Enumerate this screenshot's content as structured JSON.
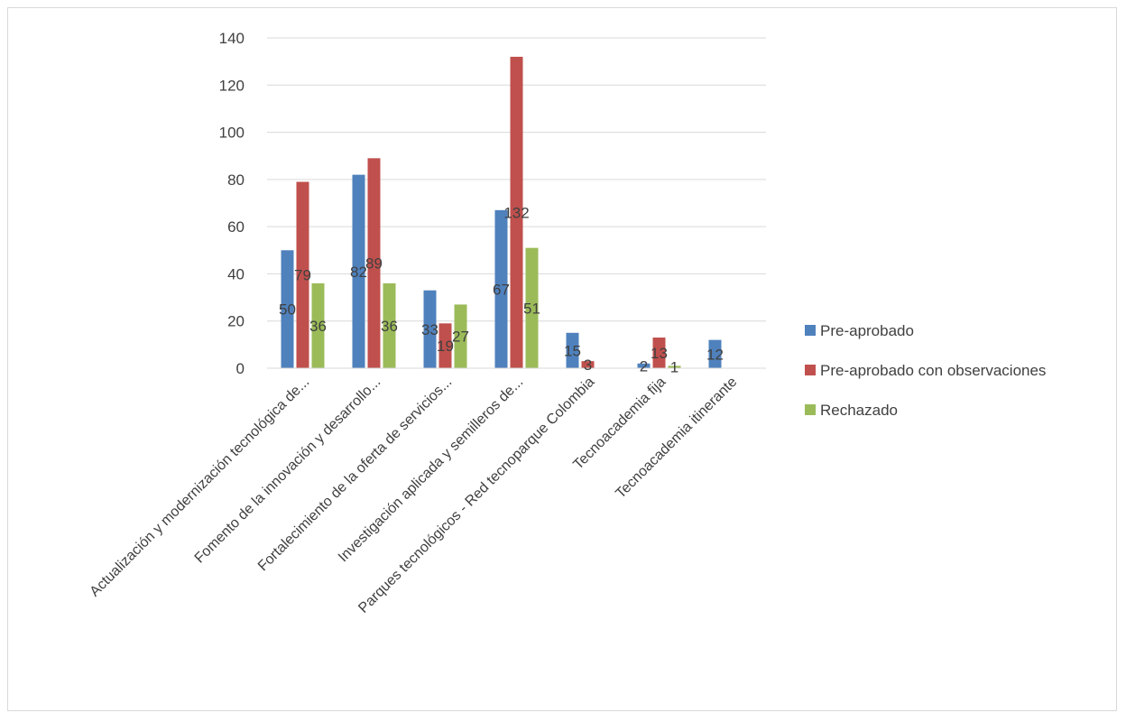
{
  "chart_data": {
    "type": "bar",
    "categories": [
      "Actualización y modernización tecnológica de...",
      "Fomento de la innovación y desarrollo...",
      "Fortalecimiento de la oferta de servicios...",
      "Investigación aplicada y semilleros de...",
      "Parques tecnológicos - Red tecnoparque Colombia",
      "Tecnoacademia fija",
      "Tecnoacademia itinerante"
    ],
    "series": [
      {
        "name": "Pre-aprobado",
        "color": "#4F81BD",
        "values": [
          50,
          82,
          33,
          67,
          15,
          2,
          12
        ]
      },
      {
        "name": "Pre-aprobado con observaciones",
        "color": "#C0504D",
        "values": [
          79,
          89,
          19,
          132,
          3,
          13,
          null
        ]
      },
      {
        "name": "Rechazado",
        "color": "#9BBB59",
        "values": [
          36,
          36,
          27,
          51,
          null,
          1,
          null
        ]
      }
    ],
    "ylim": [
      0,
      140
    ],
    "yticks": [
      0,
      20,
      40,
      60,
      80,
      100,
      120,
      140
    ],
    "grid": true,
    "legend": "right",
    "title": "",
    "xlabel": "",
    "ylabel": ""
  }
}
